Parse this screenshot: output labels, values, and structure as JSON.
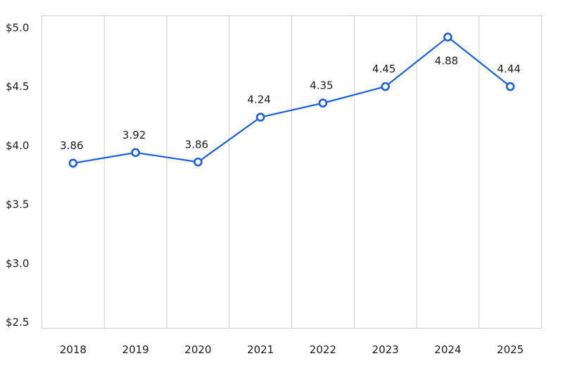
{
  "chart_data": {
    "type": "line",
    "title": "",
    "xlabel": "",
    "ylabel": "",
    "categories": [
      "2018",
      "2019",
      "2020",
      "2021",
      "2022",
      "2023",
      "2024",
      "2025"
    ],
    "series": [
      {
        "values": [
          3.86,
          3.92,
          3.86,
          4.24,
          4.35,
          4.45,
          4.88,
          4.44
        ]
      }
    ],
    "data_labels": [
      "3.86",
      "3.92",
      "3.86",
      "4.24",
      "4.35",
      "4.45",
      "4.88",
      "4.44"
    ],
    "plotted_values": [
      3.85,
      3.94,
      3.86,
      4.24,
      4.36,
      4.5,
      4.92,
      4.5
    ],
    "y_ticks": [
      2.5,
      3.0,
      3.5,
      4.0,
      4.5,
      5.0
    ],
    "y_tick_labels": [
      "$2.5",
      "$3.0",
      "$3.5",
      "$4.0",
      "$4.5",
      "$5.0"
    ],
    "ylim": [
      2.45,
      5.1
    ],
    "grid": {
      "vertical": true,
      "horizontal": false
    },
    "legend": "none",
    "colors": {
      "series": "#1a5fe0",
      "grid": "#cfcfcf"
    }
  }
}
